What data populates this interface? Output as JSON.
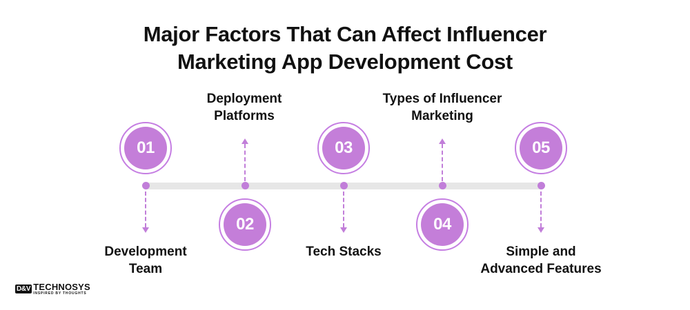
{
  "title": {
    "line1": "Major Factors That Can Affect Influencer",
    "line2": "Marketing App Development Cost"
  },
  "steps": [
    {
      "number": "01",
      "label_line1": "Development",
      "label_line2": "Team",
      "position": "below"
    },
    {
      "number": "02",
      "label_line1": "Deployment",
      "label_line2": "Platforms",
      "position": "above"
    },
    {
      "number": "03",
      "label_line1": "Tech Stacks",
      "label_line2": "",
      "position": "below"
    },
    {
      "number": "04",
      "label_line1": "Types of Influencer",
      "label_line2": "Marketing",
      "position": "above"
    },
    {
      "number": "05",
      "label_line1": "Simple and",
      "label_line2": "Advanced Features",
      "position": "below"
    }
  ],
  "logo": {
    "box": "D&V",
    "name": "TECHNOSYS",
    "tagline": "INSPIRED BY THOUGHTS"
  },
  "colors": {
    "accent": "#c47ed9",
    "track": "#e6e6e6"
  }
}
